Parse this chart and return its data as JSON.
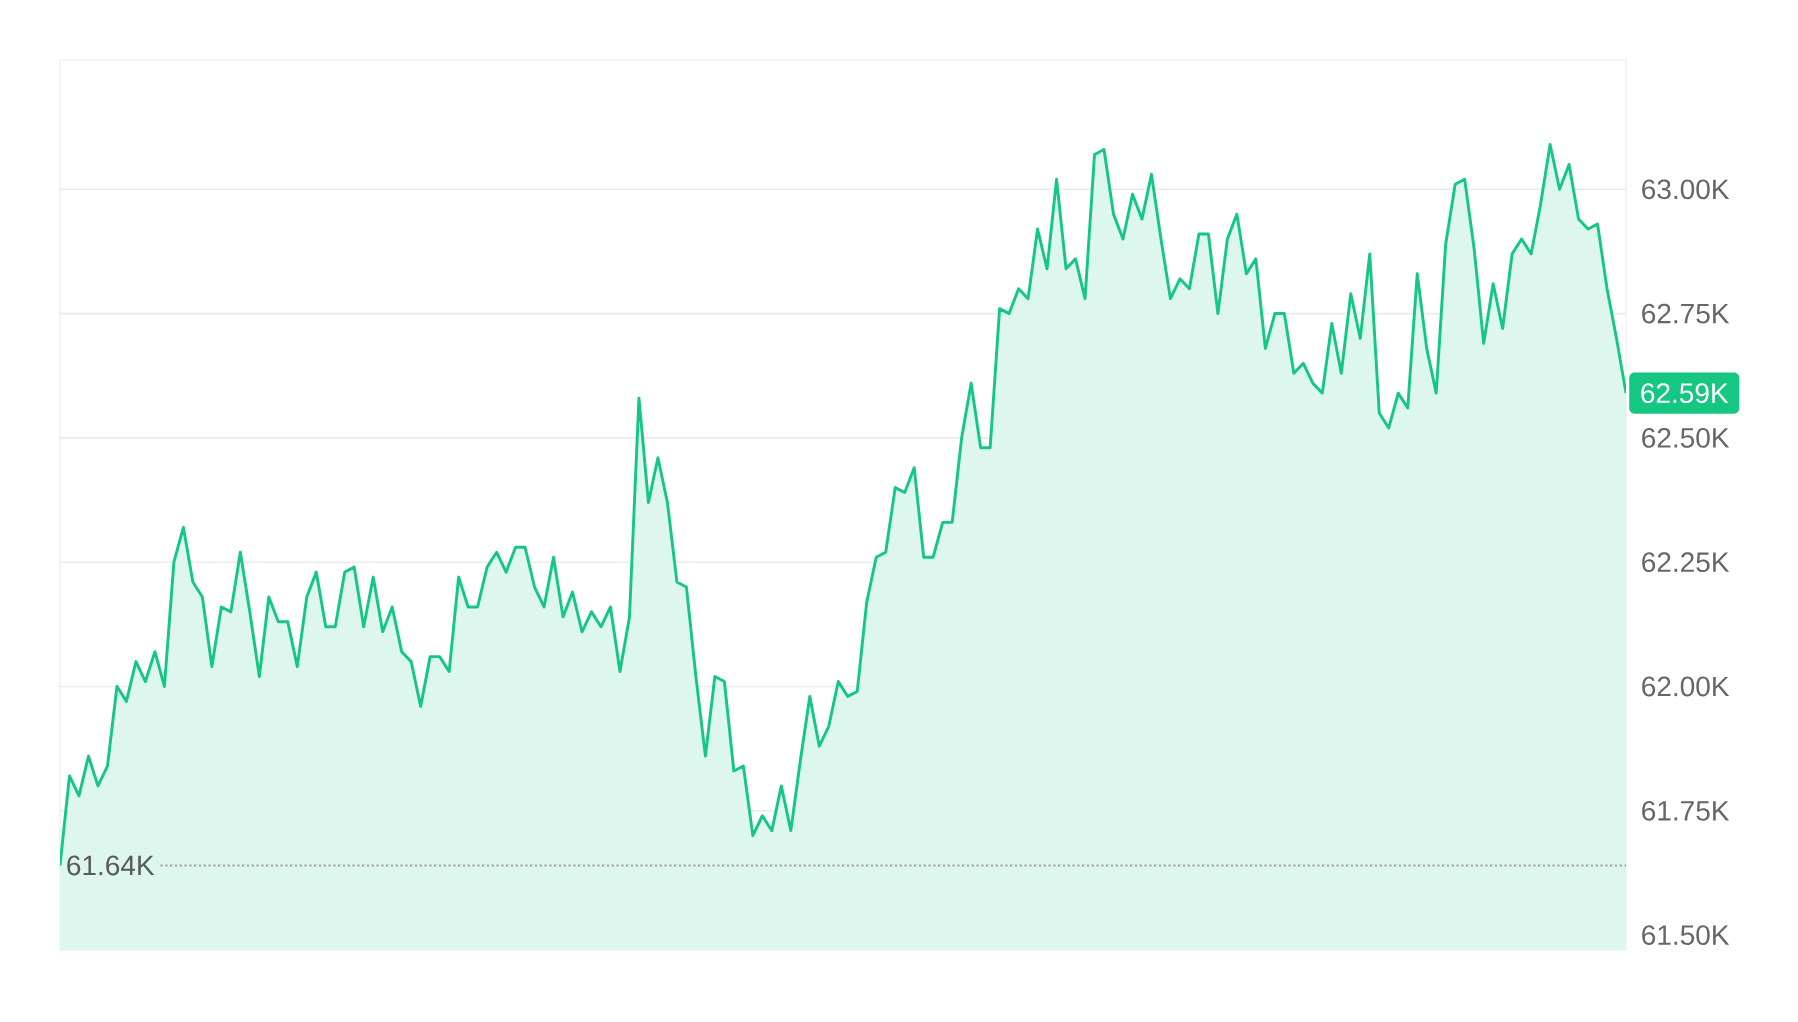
{
  "chart_data": {
    "type": "area",
    "categories": [
      null,
      null,
      null,
      null,
      null,
      null,
      null,
      null,
      null,
      null,
      null,
      null,
      null,
      null,
      null,
      null,
      null,
      null,
      null,
      null,
      null,
      null,
      null,
      null,
      null,
      null,
      null,
      null,
      null,
      null,
      null,
      null,
      null,
      null,
      null,
      null,
      null,
      null,
      null,
      null,
      null,
      null,
      null,
      null,
      null,
      null,
      null,
      null,
      null,
      null,
      null,
      null,
      null,
      null,
      null,
      null,
      null,
      null,
      null,
      null,
      null,
      null,
      null,
      null,
      null,
      null,
      null,
      null,
      null,
      null,
      null,
      null,
      null,
      null,
      null,
      null,
      null,
      null,
      null,
      null,
      null,
      null,
      null,
      null,
      null,
      null,
      null,
      null,
      null,
      null,
      null,
      null,
      null,
      null,
      null,
      null,
      null,
      null,
      null,
      null,
      null,
      null,
      null,
      null,
      null,
      null,
      null,
      null,
      null,
      null,
      null,
      null,
      null,
      null,
      null,
      null,
      null,
      null,
      null,
      null,
      null,
      null,
      null,
      null,
      null,
      null,
      null,
      null,
      null,
      null,
      null,
      null,
      null,
      null,
      null,
      null,
      null,
      null,
      null,
      null,
      null,
      null,
      null,
      null,
      null,
      null,
      null,
      null,
      null,
      null,
      null,
      null,
      null,
      null,
      null,
      null,
      null,
      null,
      null,
      null,
      null,
      null,
      null,
      null,
      null,
      null
    ],
    "series": [
      {
        "color": "#16c784",
        "values": [
          61.64,
          61.82,
          61.78,
          61.86,
          61.8,
          61.84,
          62.0,
          61.97,
          62.05,
          62.01,
          62.07,
          62.0,
          62.25,
          62.32,
          62.21,
          62.18,
          62.04,
          62.16,
          62.15,
          62.27,
          62.15,
          62.02,
          62.18,
          62.13,
          62.13,
          62.04,
          62.18,
          62.23,
          62.12,
          62.12,
          62.23,
          62.24,
          62.12,
          62.22,
          62.11,
          62.16,
          62.07,
          62.05,
          61.96,
          62.06,
          62.06,
          62.03,
          62.22,
          62.16,
          62.16,
          62.24,
          62.27,
          62.23,
          62.28,
          62.28,
          62.2,
          62.16,
          62.26,
          62.14,
          62.19,
          62.11,
          62.15,
          62.12,
          62.16,
          62.03,
          62.14,
          62.58,
          62.37,
          62.46,
          62.37,
          62.21,
          62.2,
          62.02,
          61.86,
          62.02,
          62.01,
          61.83,
          61.84,
          61.7,
          61.74,
          61.71,
          61.8,
          61.71,
          61.85,
          61.98,
          61.88,
          61.92,
          62.01,
          61.98,
          61.99,
          62.17,
          62.26,
          62.27,
          62.4,
          62.39,
          62.44,
          62.26,
          62.26,
          62.33,
          62.33,
          62.5,
          62.61,
          62.48,
          62.48,
          62.76,
          62.75,
          62.8,
          62.78,
          62.92,
          62.84,
          63.02,
          62.84,
          62.86,
          62.78,
          63.07,
          63.08,
          62.95,
          62.9,
          62.99,
          62.94,
          63.03,
          62.9,
          62.78,
          62.82,
          62.8,
          62.91,
          62.91,
          62.75,
          62.9,
          62.95,
          62.83,
          62.86,
          62.68,
          62.75,
          62.75,
          62.63,
          62.65,
          62.61,
          62.59,
          62.73,
          62.63,
          62.79,
          62.7,
          62.87,
          62.55,
          62.52,
          62.59,
          62.56,
          62.83,
          62.68,
          62.59,
          62.89,
          63.01,
          63.02,
          62.88,
          62.69,
          62.81,
          62.72,
          62.87,
          62.9,
          62.87,
          62.97,
          63.09,
          63.0,
          63.05,
          62.94,
          62.92,
          62.93,
          62.8,
          62.7,
          62.59
        ]
      }
    ],
    "ylim": [
      61.47,
      63.26
    ],
    "yticks": [
      {
        "value": 61.5,
        "label": "61.50K"
      },
      {
        "value": 61.75,
        "label": "61.75K"
      },
      {
        "value": 62.0,
        "label": "62.00K"
      },
      {
        "value": 62.25,
        "label": "62.25K"
      },
      {
        "value": 62.5,
        "label": "62.50K"
      },
      {
        "value": 62.75,
        "label": "62.75K"
      },
      {
        "value": 63.0,
        "label": "63.00K"
      }
    ],
    "grid": "y",
    "tick_labels": "y",
    "ref_lines": [
      {
        "axis": "y",
        "value": 61.64,
        "label": "61.64K",
        "color": "#9e9e9e",
        "line_style": "dotted"
      }
    ],
    "annotations": [
      "62.59K"
    ]
  }
}
